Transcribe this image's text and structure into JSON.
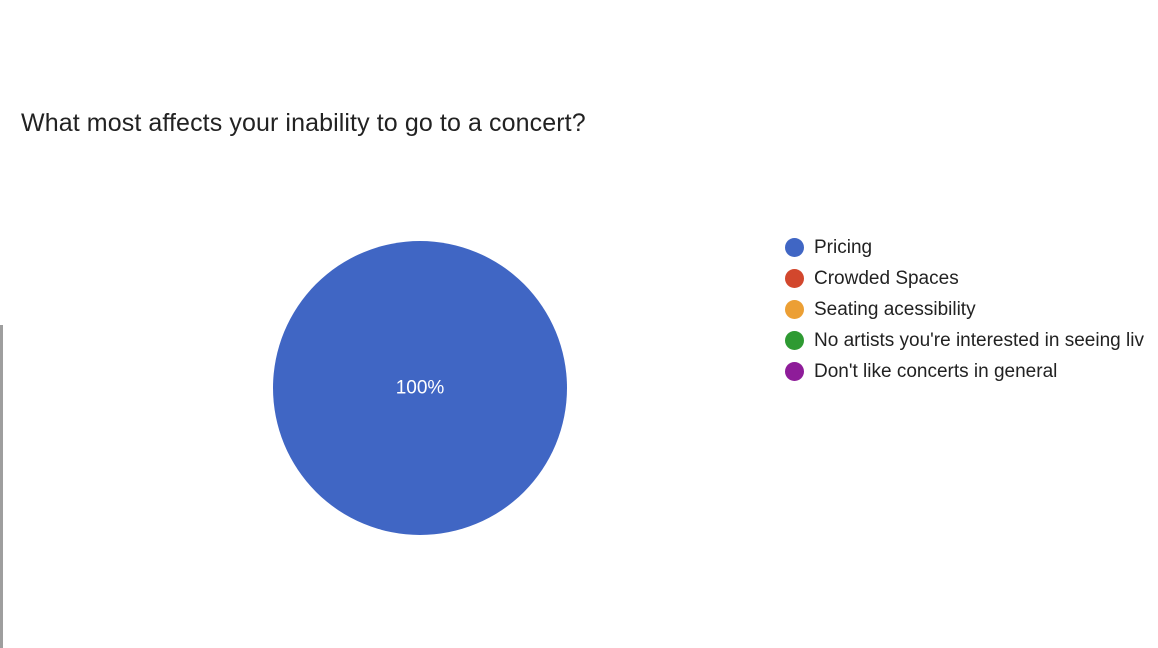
{
  "chart_data": {
    "type": "pie",
    "title": "What most affects your inability to go to a concert?",
    "categories": [
      "Pricing",
      "Crowded Spaces",
      "Seating acessibility",
      "No artists you're interested in seeing liv",
      "Don't like concerts in general"
    ],
    "values": [
      100,
      0,
      0,
      0,
      0
    ],
    "colors": [
      "#4066c4",
      "#d2472d",
      "#ec9f34",
      "#2e9a32",
      "#8e1c99"
    ],
    "data_labels": [
      "100%",
      "",
      "",
      "",
      ""
    ],
    "legend_position": "right"
  }
}
